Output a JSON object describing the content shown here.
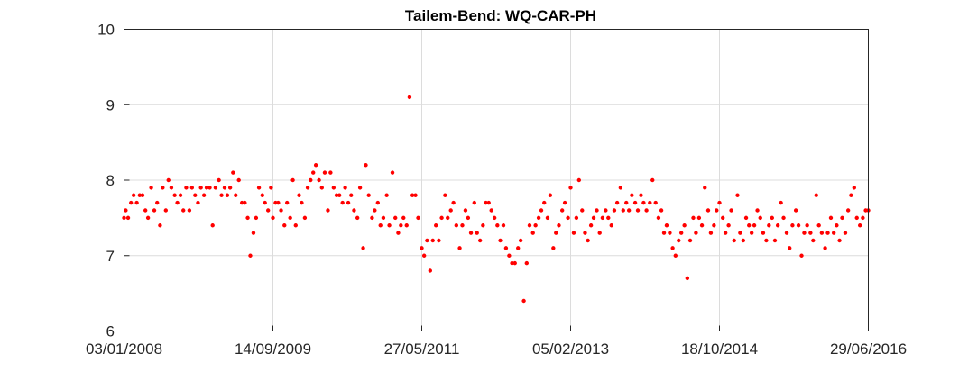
{
  "chart_data": {
    "type": "scatter",
    "title": "Tailem-Bend: WQ-CAR-PH",
    "xlabel": "",
    "ylabel": "",
    "x_axis": {
      "type": "date",
      "range": [
        "2008-01-03",
        "2016-06-29"
      ],
      "ticks": [
        "2008-01-03",
        "2009-09-14",
        "2011-05-27",
        "2013-02-05",
        "2014-10-18",
        "2016-06-29"
      ],
      "tick_labels": [
        "03/01/2008",
        "14/09/2009",
        "27/05/2011",
        "05/02/2013",
        "18/10/2014",
        "29/06/2016"
      ]
    },
    "y_axis": {
      "range": [
        6,
        10
      ],
      "ticks": [
        6,
        7,
        8,
        9,
        10
      ],
      "tick_labels": [
        "6",
        "7",
        "8",
        "9",
        "10"
      ]
    },
    "grid": true,
    "marker_color": "#ff0000",
    "series": [
      {
        "points": [
          [
            "2008-01-03",
            7.5
          ],
          [
            "2008-01-10",
            7.6
          ],
          [
            "2008-01-20",
            7.5
          ],
          [
            "2008-02-01",
            7.7
          ],
          [
            "2008-02-12",
            7.8
          ],
          [
            "2008-02-25",
            7.7
          ],
          [
            "2008-03-08",
            7.8
          ],
          [
            "2008-03-20",
            7.8
          ],
          [
            "2008-04-01",
            7.6
          ],
          [
            "2008-04-12",
            7.5
          ],
          [
            "2008-04-25",
            7.9
          ],
          [
            "2008-05-08",
            7.6
          ],
          [
            "2008-05-20",
            7.7
          ],
          [
            "2008-06-01",
            7.4
          ],
          [
            "2008-06-12",
            7.9
          ],
          [
            "2008-06-25",
            7.6
          ],
          [
            "2008-07-06",
            8.0
          ],
          [
            "2008-07-18",
            7.9
          ],
          [
            "2008-08-01",
            7.8
          ],
          [
            "2008-08-12",
            7.7
          ],
          [
            "2008-08-25",
            7.8
          ],
          [
            "2008-09-06",
            7.6
          ],
          [
            "2008-09-18",
            7.9
          ],
          [
            "2008-10-01",
            7.6
          ],
          [
            "2008-10-12",
            7.9
          ],
          [
            "2008-10-25",
            7.8
          ],
          [
            "2008-11-06",
            7.7
          ],
          [
            "2008-11-18",
            7.9
          ],
          [
            "2008-12-01",
            7.8
          ],
          [
            "2008-12-12",
            7.9
          ],
          [
            "2008-12-25",
            7.9
          ],
          [
            "2009-01-06",
            7.4
          ],
          [
            "2009-01-18",
            7.9
          ],
          [
            "2009-02-01",
            8.0
          ],
          [
            "2009-02-12",
            7.8
          ],
          [
            "2009-02-25",
            7.9
          ],
          [
            "2009-03-08",
            7.8
          ],
          [
            "2009-03-20",
            7.9
          ],
          [
            "2009-04-01",
            8.1
          ],
          [
            "2009-04-12",
            7.8
          ],
          [
            "2009-04-25",
            8.0
          ],
          [
            "2009-05-08",
            7.7
          ],
          [
            "2009-05-20",
            7.7
          ],
          [
            "2009-06-01",
            7.5
          ],
          [
            "2009-06-12",
            7.0
          ],
          [
            "2009-06-25",
            7.3
          ],
          [
            "2009-07-06",
            7.5
          ],
          [
            "2009-07-18",
            7.9
          ],
          [
            "2009-08-01",
            7.8
          ],
          [
            "2009-08-12",
            7.7
          ],
          [
            "2009-08-25",
            7.6
          ],
          [
            "2009-09-06",
            7.9
          ],
          [
            "2009-09-14",
            7.5
          ],
          [
            "2009-09-25",
            7.7
          ],
          [
            "2009-10-06",
            7.7
          ],
          [
            "2009-10-18",
            7.6
          ],
          [
            "2009-11-01",
            7.4
          ],
          [
            "2009-11-12",
            7.7
          ],
          [
            "2009-11-25",
            7.5
          ],
          [
            "2009-12-06",
            8.0
          ],
          [
            "2009-12-18",
            7.4
          ],
          [
            "2010-01-01",
            7.8
          ],
          [
            "2010-01-12",
            7.7
          ],
          [
            "2010-01-25",
            7.5
          ],
          [
            "2010-02-06",
            7.9
          ],
          [
            "2010-02-18",
            8.0
          ],
          [
            "2010-03-01",
            8.1
          ],
          [
            "2010-03-12",
            8.2
          ],
          [
            "2010-03-25",
            8.0
          ],
          [
            "2010-04-06",
            7.9
          ],
          [
            "2010-04-18",
            8.1
          ],
          [
            "2010-05-01",
            7.6
          ],
          [
            "2010-05-12",
            8.1
          ],
          [
            "2010-05-25",
            7.9
          ],
          [
            "2010-06-06",
            7.8
          ],
          [
            "2010-06-18",
            7.8
          ],
          [
            "2010-07-01",
            7.7
          ],
          [
            "2010-07-12",
            7.9
          ],
          [
            "2010-07-25",
            7.7
          ],
          [
            "2010-08-06",
            7.8
          ],
          [
            "2010-08-18",
            7.6
          ],
          [
            "2010-09-01",
            7.5
          ],
          [
            "2010-09-12",
            7.9
          ],
          [
            "2010-09-25",
            7.1
          ],
          [
            "2010-10-06",
            8.2
          ],
          [
            "2010-10-18",
            7.8
          ],
          [
            "2010-11-01",
            7.5
          ],
          [
            "2010-11-12",
            7.6
          ],
          [
            "2010-11-25",
            7.7
          ],
          [
            "2010-12-06",
            7.4
          ],
          [
            "2010-12-18",
            7.5
          ],
          [
            "2011-01-01",
            7.8
          ],
          [
            "2011-01-12",
            7.4
          ],
          [
            "2011-01-25",
            8.1
          ],
          [
            "2011-02-06",
            7.5
          ],
          [
            "2011-02-18",
            7.3
          ],
          [
            "2011-03-01",
            7.4
          ],
          [
            "2011-03-12",
            7.5
          ],
          [
            "2011-03-25",
            7.4
          ],
          [
            "2011-04-06",
            9.1
          ],
          [
            "2011-04-18",
            7.8
          ],
          [
            "2011-05-01",
            7.8
          ],
          [
            "2011-05-12",
            7.5
          ],
          [
            "2011-05-27",
            7.1
          ],
          [
            "2011-06-06",
            7.0
          ],
          [
            "2011-06-18",
            7.2
          ],
          [
            "2011-07-01",
            6.8
          ],
          [
            "2011-07-12",
            7.2
          ],
          [
            "2011-07-25",
            7.4
          ],
          [
            "2011-08-06",
            7.2
          ],
          [
            "2011-08-18",
            7.5
          ],
          [
            "2011-09-01",
            7.8
          ],
          [
            "2011-09-12",
            7.5
          ],
          [
            "2011-09-25",
            7.6
          ],
          [
            "2011-10-06",
            7.7
          ],
          [
            "2011-10-18",
            7.4
          ],
          [
            "2011-11-01",
            7.1
          ],
          [
            "2011-11-12",
            7.4
          ],
          [
            "2011-11-25",
            7.6
          ],
          [
            "2011-12-06",
            7.5
          ],
          [
            "2011-12-18",
            7.3
          ],
          [
            "2012-01-01",
            7.7
          ],
          [
            "2012-01-12",
            7.3
          ],
          [
            "2012-01-25",
            7.2
          ],
          [
            "2012-02-06",
            7.4
          ],
          [
            "2012-02-18",
            7.7
          ],
          [
            "2012-03-01",
            7.7
          ],
          [
            "2012-03-12",
            7.6
          ],
          [
            "2012-03-25",
            7.5
          ],
          [
            "2012-04-06",
            7.4
          ],
          [
            "2012-04-18",
            7.2
          ],
          [
            "2012-05-01",
            7.4
          ],
          [
            "2012-05-12",
            7.1
          ],
          [
            "2012-05-25",
            7.0
          ],
          [
            "2012-06-06",
            6.9
          ],
          [
            "2012-06-18",
            6.9
          ],
          [
            "2012-07-01",
            7.1
          ],
          [
            "2012-07-12",
            7.2
          ],
          [
            "2012-07-25",
            6.4
          ],
          [
            "2012-08-06",
            6.9
          ],
          [
            "2012-08-18",
            7.4
          ],
          [
            "2012-09-01",
            7.3
          ],
          [
            "2012-09-12",
            7.4
          ],
          [
            "2012-09-25",
            7.5
          ],
          [
            "2012-10-06",
            7.6
          ],
          [
            "2012-10-18",
            7.7
          ],
          [
            "2012-11-01",
            7.5
          ],
          [
            "2012-11-12",
            7.8
          ],
          [
            "2012-11-25",
            7.1
          ],
          [
            "2012-12-06",
            7.3
          ],
          [
            "2012-12-18",
            7.4
          ],
          [
            "2013-01-01",
            7.6
          ],
          [
            "2013-01-12",
            7.7
          ],
          [
            "2013-01-25",
            7.5
          ],
          [
            "2013-02-05",
            7.9
          ],
          [
            "2013-02-18",
            7.3
          ],
          [
            "2013-03-01",
            7.5
          ],
          [
            "2013-03-12",
            8.0
          ],
          [
            "2013-03-25",
            7.6
          ],
          [
            "2013-04-06",
            7.3
          ],
          [
            "2013-04-18",
            7.2
          ],
          [
            "2013-05-01",
            7.4
          ],
          [
            "2013-05-12",
            7.5
          ],
          [
            "2013-05-25",
            7.6
          ],
          [
            "2013-06-06",
            7.3
          ],
          [
            "2013-06-18",
            7.5
          ],
          [
            "2013-07-01",
            7.6
          ],
          [
            "2013-07-12",
            7.5
          ],
          [
            "2013-07-25",
            7.4
          ],
          [
            "2013-08-06",
            7.6
          ],
          [
            "2013-08-18",
            7.7
          ],
          [
            "2013-09-01",
            7.9
          ],
          [
            "2013-09-12",
            7.6
          ],
          [
            "2013-09-25",
            7.7
          ],
          [
            "2013-10-06",
            7.6
          ],
          [
            "2013-10-18",
            7.8
          ],
          [
            "2013-11-01",
            7.7
          ],
          [
            "2013-11-12",
            7.6
          ],
          [
            "2013-11-25",
            7.8
          ],
          [
            "2013-12-06",
            7.7
          ],
          [
            "2013-12-18",
            7.6
          ],
          [
            "2014-01-01",
            7.7
          ],
          [
            "2014-01-12",
            8.0
          ],
          [
            "2014-01-25",
            7.7
          ],
          [
            "2014-02-06",
            7.5
          ],
          [
            "2014-02-18",
            7.6
          ],
          [
            "2014-03-01",
            7.3
          ],
          [
            "2014-03-12",
            7.4
          ],
          [
            "2014-03-25",
            7.3
          ],
          [
            "2014-04-06",
            7.1
          ],
          [
            "2014-04-18",
            7.0
          ],
          [
            "2014-05-01",
            7.2
          ],
          [
            "2014-05-12",
            7.3
          ],
          [
            "2014-05-25",
            7.4
          ],
          [
            "2014-06-06",
            6.7
          ],
          [
            "2014-06-18",
            7.2
          ],
          [
            "2014-07-01",
            7.5
          ],
          [
            "2014-07-12",
            7.3
          ],
          [
            "2014-07-25",
            7.5
          ],
          [
            "2014-08-06",
            7.4
          ],
          [
            "2014-08-18",
            7.9
          ],
          [
            "2014-09-01",
            7.6
          ],
          [
            "2014-09-12",
            7.3
          ],
          [
            "2014-09-25",
            7.4
          ],
          [
            "2014-10-06",
            7.6
          ],
          [
            "2014-10-18",
            7.7
          ],
          [
            "2014-11-01",
            7.5
          ],
          [
            "2014-11-12",
            7.3
          ],
          [
            "2014-11-25",
            7.4
          ],
          [
            "2014-12-06",
            7.6
          ],
          [
            "2014-12-18",
            7.2
          ],
          [
            "2015-01-01",
            7.8
          ],
          [
            "2015-01-12",
            7.3
          ],
          [
            "2015-01-25",
            7.2
          ],
          [
            "2015-02-06",
            7.5
          ],
          [
            "2015-02-18",
            7.4
          ],
          [
            "2015-03-01",
            7.3
          ],
          [
            "2015-03-12",
            7.4
          ],
          [
            "2015-03-25",
            7.6
          ],
          [
            "2015-04-06",
            7.5
          ],
          [
            "2015-04-18",
            7.3
          ],
          [
            "2015-05-01",
            7.2
          ],
          [
            "2015-05-12",
            7.4
          ],
          [
            "2015-05-25",
            7.5
          ],
          [
            "2015-06-06",
            7.2
          ],
          [
            "2015-06-18",
            7.4
          ],
          [
            "2015-07-01",
            7.7
          ],
          [
            "2015-07-12",
            7.5
          ],
          [
            "2015-07-25",
            7.3
          ],
          [
            "2015-08-06",
            7.1
          ],
          [
            "2015-08-18",
            7.4
          ],
          [
            "2015-09-01",
            7.6
          ],
          [
            "2015-09-12",
            7.4
          ],
          [
            "2015-09-25",
            7.0
          ],
          [
            "2015-10-06",
            7.3
          ],
          [
            "2015-10-18",
            7.4
          ],
          [
            "2015-11-01",
            7.3
          ],
          [
            "2015-11-12",
            7.2
          ],
          [
            "2015-11-25",
            7.8
          ],
          [
            "2015-12-06",
            7.4
          ],
          [
            "2015-12-18",
            7.3
          ],
          [
            "2016-01-01",
            7.1
          ],
          [
            "2016-01-12",
            7.3
          ],
          [
            "2016-01-25",
            7.5
          ],
          [
            "2016-02-06",
            7.3
          ],
          [
            "2016-02-18",
            7.4
          ],
          [
            "2016-03-01",
            7.2
          ],
          [
            "2016-03-12",
            7.5
          ],
          [
            "2016-03-25",
            7.3
          ],
          [
            "2016-04-06",
            7.6
          ],
          [
            "2016-04-18",
            7.8
          ],
          [
            "2016-05-01",
            7.9
          ],
          [
            "2016-05-12",
            7.5
          ],
          [
            "2016-05-25",
            7.4
          ],
          [
            "2016-06-06",
            7.5
          ],
          [
            "2016-06-18",
            7.6
          ],
          [
            "2016-06-29",
            7.6
          ]
        ]
      }
    ]
  }
}
